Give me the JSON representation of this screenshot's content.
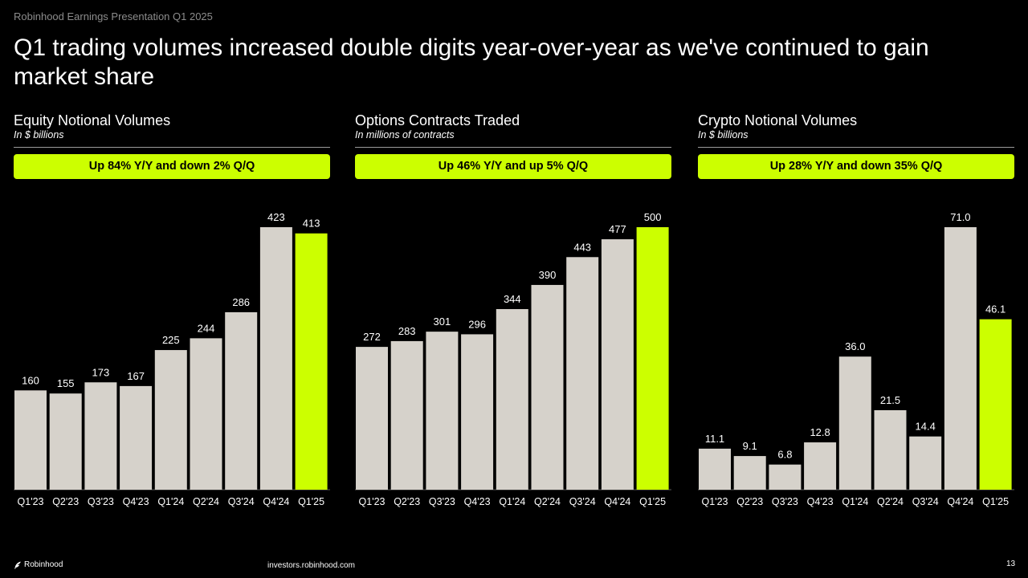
{
  "header": "Robinhood Earnings Presentation Q1 2025",
  "title": "Q1 trading volumes increased double digits year-over-year as we've continued to gain market share",
  "colors": {
    "bar": "#d6d2cb",
    "highlight": "#ccff00",
    "background": "#000000",
    "text": "#ffffff"
  },
  "panels": [
    {
      "title": "Equity Notional Volumes",
      "subtitle": "In $ billions",
      "badge": "Up 84% Y/Y and down 2% Q/Q"
    },
    {
      "title": "Options Contracts Traded",
      "subtitle": "In millions of contracts",
      "badge": "Up 46% Y/Y and up 5% Q/Q"
    },
    {
      "title": "Crypto Notional Volumes",
      "subtitle": "In $ billions",
      "badge": "Up 28% Y/Y and down 35% Q/Q"
    }
  ],
  "chart_data": [
    {
      "type": "bar",
      "title": "Equity Notional Volumes",
      "subtitle": "In $ billions",
      "categories": [
        "Q1'23",
        "Q2'23",
        "Q3'23",
        "Q4'23",
        "Q1'24",
        "Q2'24",
        "Q3'24",
        "Q4'24",
        "Q1'25"
      ],
      "values": [
        160,
        155,
        173,
        167,
        225,
        244,
        286,
        423,
        413
      ],
      "labels": [
        "160",
        "155",
        "173",
        "167",
        "225",
        "244",
        "286",
        "423",
        "413"
      ],
      "highlight_index": 8,
      "ylim": [
        0,
        423
      ],
      "grid": false
    },
    {
      "type": "bar",
      "title": "Options Contracts Traded",
      "subtitle": "In millions of contracts",
      "categories": [
        "Q1'23",
        "Q2'23",
        "Q3'23",
        "Q4'23",
        "Q1'24",
        "Q2'24",
        "Q3'24",
        "Q4'24",
        "Q1'25"
      ],
      "values": [
        272,
        283,
        301,
        296,
        344,
        390,
        443,
        477,
        500
      ],
      "labels": [
        "272",
        "283",
        "301",
        "296",
        "344",
        "390",
        "443",
        "477",
        "500"
      ],
      "highlight_index": 8,
      "ylim": [
        0,
        500
      ],
      "grid": false
    },
    {
      "type": "bar",
      "title": "Crypto Notional Volumes",
      "subtitle": "In $ billions",
      "categories": [
        "Q1'23",
        "Q2'23",
        "Q3'23",
        "Q4'23",
        "Q1'24",
        "Q2'24",
        "Q3'24",
        "Q4'24",
        "Q1'25"
      ],
      "values": [
        11.1,
        9.1,
        6.8,
        12.8,
        36.0,
        21.5,
        14.4,
        71.0,
        46.1
      ],
      "labels": [
        "11.1",
        "9.1",
        "6.8",
        "12.8",
        "36.0",
        "21.5",
        "14.4",
        "71.0",
        "46.1"
      ],
      "highlight_index": 8,
      "ylim": [
        0,
        71.0
      ],
      "grid": false
    }
  ],
  "footer": {
    "logo_text": "Robinhood",
    "url": "investors.robinhood.com",
    "page": "13"
  }
}
